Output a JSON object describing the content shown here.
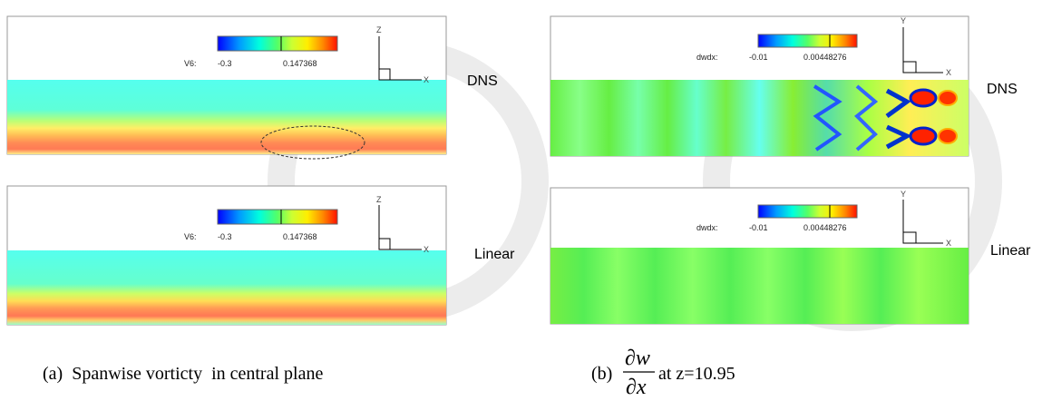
{
  "panels": [
    {
      "colorbar": {
        "name": "V6:",
        "min_label": "-0.3",
        "mid_label": "0.147368"
      },
      "axes": {
        "vertical": "Z",
        "horizontal": "X"
      },
      "label": "DNS"
    },
    {
      "colorbar": {
        "name": "V6:",
        "min_label": "-0.3",
        "mid_label": "0.147368"
      },
      "axes": {
        "vertical": "Z",
        "horizontal": "X"
      },
      "label": "Linear"
    },
    {
      "colorbar": {
        "name": "dwdx:",
        "min_label": "-0.01",
        "mid_label": "0.00448276"
      },
      "axes": {
        "vertical": "Y",
        "horizontal": "X"
      },
      "label": "DNS"
    },
    {
      "colorbar": {
        "name": "dwdx:",
        "min_label": "-0.01",
        "mid_label": "0.00448276"
      },
      "axes": {
        "vertical": "Y",
        "horizontal": "X"
      },
      "label": "Linear"
    }
  ],
  "captions": [
    {
      "text": "(a)  Spanwise vorticty  in central plane"
    },
    {
      "prefix": "(b)",
      "numerator": "∂w",
      "denominator": "∂x",
      "suffix": "at z=10.95"
    }
  ]
}
